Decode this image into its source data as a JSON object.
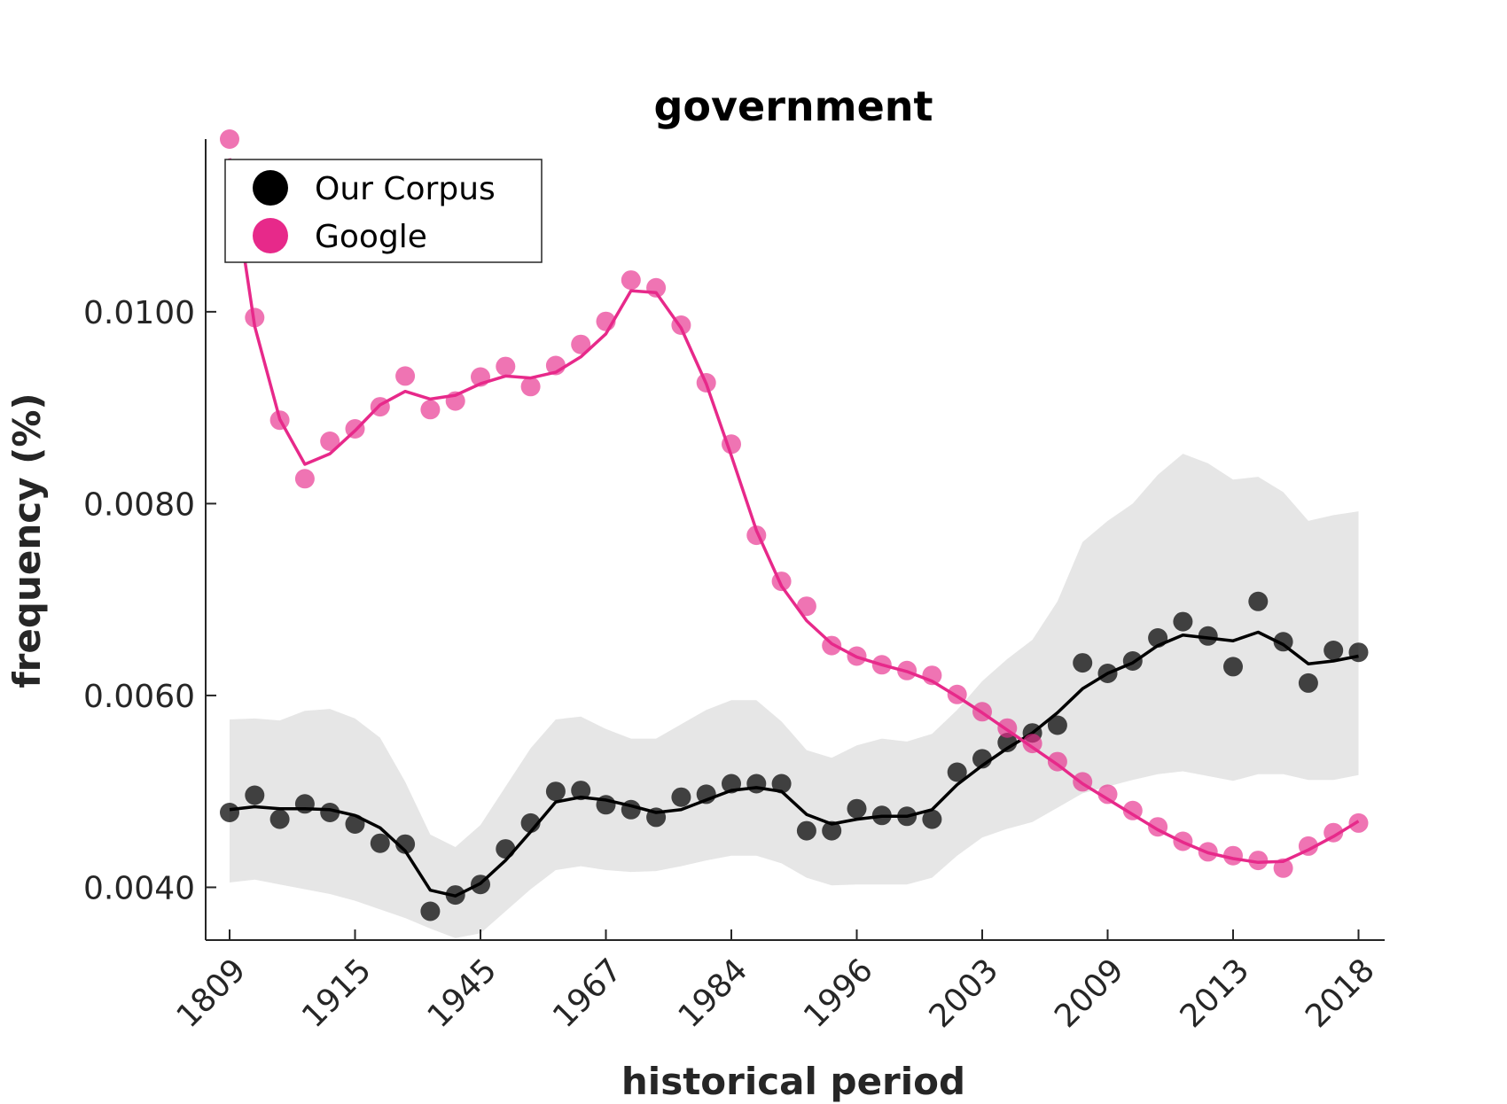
{
  "chart_data": {
    "type": "line",
    "title": "government",
    "xlabel": "historical period",
    "ylabel": "frequency (%)",
    "x_tick_labels": [
      "1809",
      "1915",
      "1945",
      "1967",
      "1984",
      "1996",
      "2003",
      "2009",
      "2013",
      "2018"
    ],
    "y_tick_labels": [
      "0.0040",
      "0.0060",
      "0.0080",
      "0.0100"
    ],
    "y_ticks": [
      0.004,
      0.006,
      0.008,
      0.01
    ],
    "ylim": [
      0.00345,
      0.0118
    ],
    "x_index_range": [
      0,
      46
    ],
    "x_tick_index": [
      0,
      5,
      10,
      15,
      20,
      25,
      30,
      35,
      40,
      45
    ],
    "legend": {
      "placement": "top-left",
      "entries": [
        {
          "label": "Our Corpus",
          "color": "#000000"
        },
        {
          "label": "Google",
          "color": "#e7298a"
        }
      ]
    },
    "band": {
      "color": "#e6e6e6",
      "upper": [
        0.00575,
        0.00576,
        0.00574,
        0.00584,
        0.00586,
        0.00576,
        0.00556,
        0.0051,
        0.00455,
        0.00442,
        0.00465,
        0.00505,
        0.00545,
        0.00575,
        0.00578,
        0.00565,
        0.00555,
        0.00555,
        0.0057,
        0.00585,
        0.00595,
        0.00595,
        0.00573,
        0.00543,
        0.00535,
        0.00548,
        0.00555,
        0.00552,
        0.0056,
        0.00585,
        0.00615,
        0.00638,
        0.00658,
        0.00698,
        0.0076,
        0.00782,
        0.008,
        0.0083,
        0.00852,
        0.00842,
        0.00825,
        0.00828,
        0.00812,
        0.00782,
        0.00788,
        0.00792
      ],
      "lower": [
        0.00405,
        0.00408,
        0.00403,
        0.00398,
        0.00393,
        0.00386,
        0.00377,
        0.00368,
        0.00357,
        0.00347,
        0.00352,
        0.00375,
        0.00398,
        0.00418,
        0.00422,
        0.00418,
        0.00416,
        0.00417,
        0.00422,
        0.00428,
        0.00433,
        0.00433,
        0.00425,
        0.0041,
        0.00402,
        0.00403,
        0.00403,
        0.00403,
        0.0041,
        0.00433,
        0.00452,
        0.00461,
        0.00468,
        0.00483,
        0.00498,
        0.00505,
        0.00512,
        0.00518,
        0.00521,
        0.00516,
        0.00511,
        0.00518,
        0.00518,
        0.00512,
        0.00512,
        0.00517
      ]
    },
    "series": [
      {
        "name": "Our Corpus",
        "color": "#000000",
        "points": [
          0.00478,
          0.00496,
          0.00471,
          0.00487,
          0.00478,
          0.00466,
          0.00446,
          0.00445,
          0.00375,
          0.00392,
          0.00403,
          0.0044,
          0.00467,
          0.005,
          0.00501,
          0.00486,
          0.00481,
          0.00473,
          0.00494,
          0.00497,
          0.00508,
          0.00508,
          0.00508,
          0.00459,
          0.00459,
          0.00482,
          0.00475,
          0.00474,
          0.00471,
          0.0052,
          0.00534,
          0.00551,
          0.00561,
          0.00569,
          0.00634,
          0.00623,
          0.00636,
          0.0066,
          0.00677,
          0.00662,
          0.0063,
          0.00698,
          0.00656,
          0.00613,
          0.00647,
          0.00645
        ],
        "smooth": [
          0.00481,
          0.00484,
          0.00482,
          0.00482,
          0.00481,
          0.00475,
          0.00462,
          0.00438,
          0.00397,
          0.00391,
          0.00404,
          0.00428,
          0.00458,
          0.00489,
          0.00494,
          0.00491,
          0.00485,
          0.00478,
          0.00481,
          0.00491,
          0.00501,
          0.00504,
          0.005,
          0.00476,
          0.00466,
          0.00471,
          0.00474,
          0.00474,
          0.00481,
          0.00507,
          0.00527,
          0.00545,
          0.00561,
          0.00582,
          0.00607,
          0.00623,
          0.00634,
          0.00652,
          0.00663,
          0.0066,
          0.00657,
          0.00666,
          0.00653,
          0.00633,
          0.00636,
          0.00641
        ]
      },
      {
        "name": "Google",
        "color": "#e7298a",
        "points": [
          0.0118,
          0.00994,
          0.00887,
          0.00826,
          0.00865,
          0.00878,
          0.00901,
          0.00933,
          0.00898,
          0.00907,
          0.00932,
          0.00943,
          0.00922,
          0.00944,
          0.00966,
          0.0099,
          0.01033,
          0.01025,
          0.00986,
          0.00926,
          0.00862,
          0.00767,
          0.00719,
          0.00693,
          0.00652,
          0.00641,
          0.00632,
          0.00626,
          0.00621,
          0.00601,
          0.00583,
          0.00566,
          0.0055,
          0.00531,
          0.0051,
          0.00497,
          0.0048,
          0.00463,
          0.00448,
          0.00437,
          0.00433,
          0.00428,
          0.0042,
          0.00443,
          0.00457,
          0.00467
        ],
        "smooth": [
          0.0116,
          0.00985,
          0.00888,
          0.00841,
          0.00852,
          0.00876,
          0.00903,
          0.00917,
          0.00909,
          0.00913,
          0.00925,
          0.00933,
          0.00931,
          0.00937,
          0.00953,
          0.00977,
          0.01022,
          0.0102,
          0.00983,
          0.00925,
          0.0085,
          0.00772,
          0.00714,
          0.00678,
          0.00654,
          0.0064,
          0.00632,
          0.00625,
          0.00615,
          0.00599,
          0.00582,
          0.00564,
          0.00546,
          0.00528,
          0.00508,
          0.00492,
          0.00476,
          0.0046,
          0.00447,
          0.00436,
          0.0043,
          0.00426,
          0.00427,
          0.00439,
          0.00453,
          0.00469
        ]
      }
    ]
  }
}
